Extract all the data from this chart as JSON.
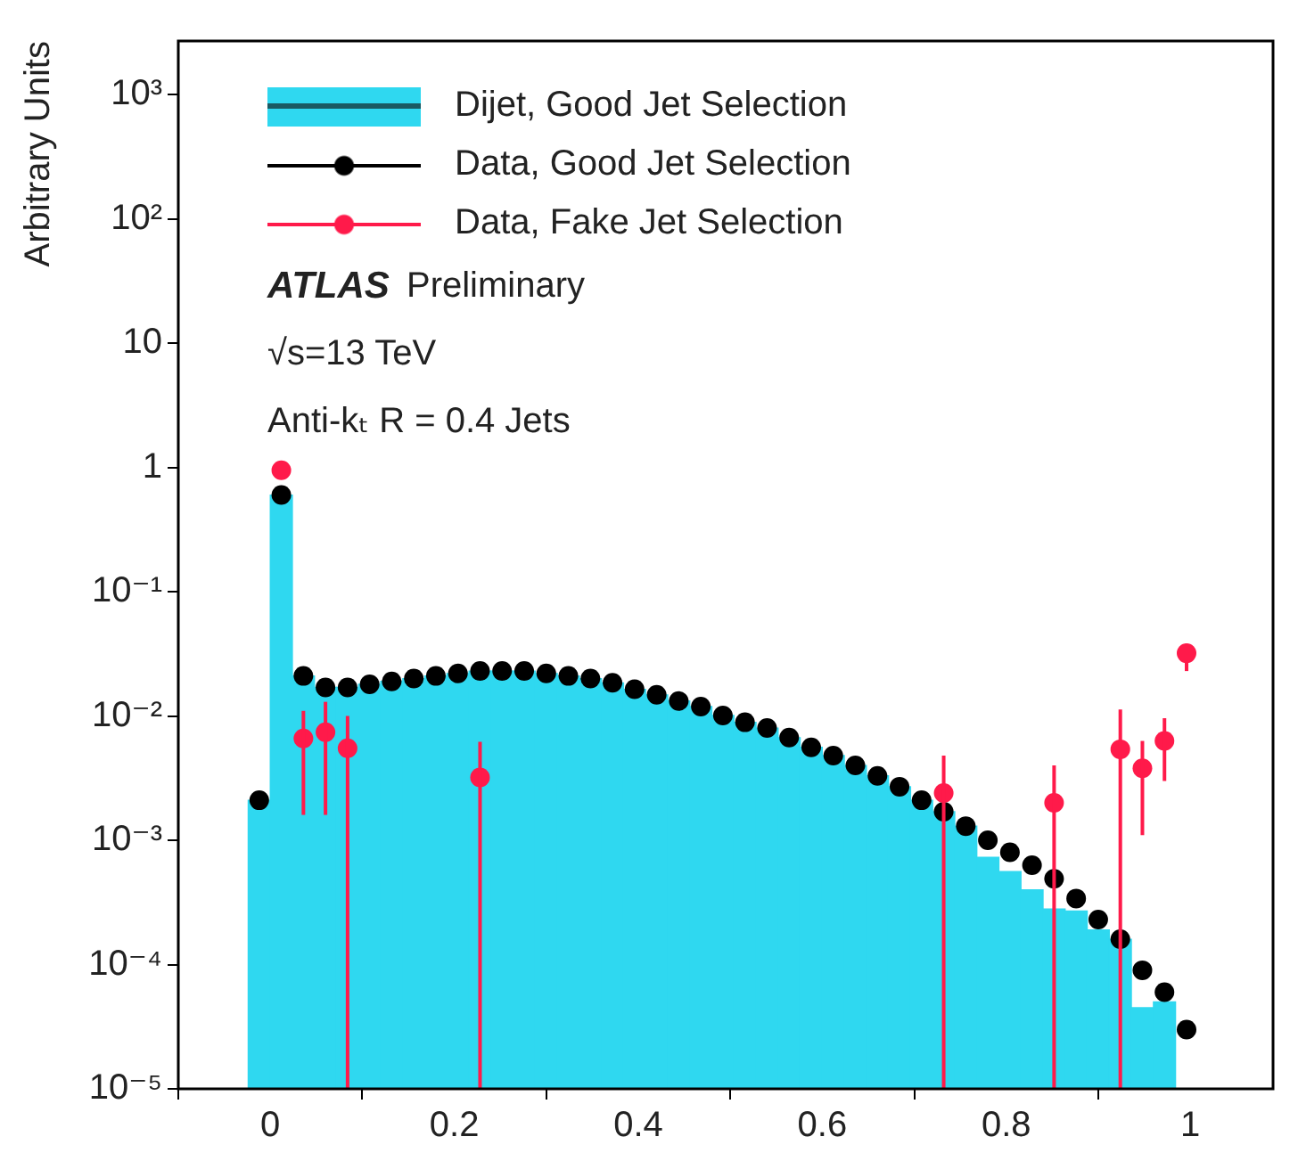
{
  "chart_data": {
    "type": "histogram",
    "ylabel": "Arbitrary Units",
    "legend": "top left",
    "grid": false,
    "log": "y",
    "marker": "circle",
    "annotations": [
      "ATLAS Preliminary",
      "√s=13 TeV",
      "Anti-kₜ R = 0.4 Jets"
    ],
    "xlim": [
      -0.1,
      1.09
    ],
    "xticks": [
      0,
      0.2,
      0.4,
      0.6,
      0.8,
      1
    ],
    "ylim": [
      1e-05,
      2700
    ],
    "yticks": [
      {
        "value": 1e-05,
        "label": "10⁻⁵"
      },
      {
        "value": 0.0001,
        "label": "10⁻⁴"
      },
      {
        "value": 0.001,
        "label": "10⁻³"
      },
      {
        "value": 0.01,
        "label": "10⁻²"
      },
      {
        "value": 0.1,
        "label": "10⁻¹"
      },
      1,
      10,
      {
        "value": 100,
        "label": "10²"
      },
      {
        "value": 1000,
        "label": "10³"
      }
    ],
    "bins": [
      -0.024,
      0,
      0.024,
      0.048,
      0.072,
      0.096,
      0.12,
      0.144,
      0.168,
      0.192,
      0.216,
      0.24,
      0.264,
      0.288,
      0.312,
      0.336,
      0.36,
      0.384,
      0.408,
      0.432,
      0.456,
      0.48,
      0.504,
      0.528,
      0.552,
      0.576,
      0.6,
      0.624,
      0.648,
      0.672,
      0.696,
      0.72,
      0.744,
      0.768,
      0.792,
      0.816,
      0.84,
      0.864,
      0.888,
      0.912,
      0.936,
      0.96,
      0.984
    ],
    "series": [
      {
        "name": "Dijet, Good Jet Selection",
        "color": "#2fd8f0",
        "values": [
          0.0021,
          0.6,
          0.021,
          0.017,
          0.017,
          0.018,
          0.019,
          0.02,
          0.021,
          0.022,
          0.023,
          0.023,
          0.023,
          0.022,
          0.021,
          0.02,
          0.0185,
          0.0164,
          0.0148,
          0.0132,
          0.0119,
          0.0101,
          0.0089,
          0.008,
          0.0067,
          0.0056,
          0.0048,
          0.004,
          0.0033,
          0.0027,
          0.0021,
          0.0017,
          0.0013,
          0.00073,
          0.00056,
          0.0004,
          0.00028,
          0.00027,
          0.00019,
          0.00016,
          4.5e-05,
          5e-05
        ]
      },
      {
        "name": "Data, Good Jet Selection",
        "type": "scatter",
        "color": "#000000",
        "x": [
          -0.012,
          0.012,
          0.036,
          0.06,
          0.084,
          0.108,
          0.132,
          0.156,
          0.18,
          0.204,
          0.228,
          0.252,
          0.276,
          0.3,
          0.324,
          0.348,
          0.372,
          0.396,
          0.42,
          0.444,
          0.468,
          0.492,
          0.516,
          0.54,
          0.564,
          0.588,
          0.612,
          0.636,
          0.66,
          0.684,
          0.708,
          0.732,
          0.756,
          0.78,
          0.804,
          0.828,
          0.852,
          0.876,
          0.9,
          0.924,
          0.948,
          0.972,
          0.996
        ],
        "values": [
          0.0021,
          0.6,
          0.021,
          0.017,
          0.017,
          0.018,
          0.019,
          0.02,
          0.021,
          0.022,
          0.023,
          0.023,
          0.023,
          0.022,
          0.021,
          0.02,
          0.0185,
          0.0164,
          0.0148,
          0.0132,
          0.0119,
          0.0101,
          0.0089,
          0.008,
          0.0067,
          0.0056,
          0.0048,
          0.004,
          0.0033,
          0.0027,
          0.0021,
          0.0017,
          0.0013,
          0.001,
          0.0008,
          0.00063,
          0.00049,
          0.00034,
          0.00023,
          0.00016,
          9e-05,
          6e-05,
          3e-05
        ]
      },
      {
        "name": "Data, Fake Jet Selection",
        "type": "scatter",
        "color": "#ff1a4a",
        "x": [
          0.012,
          0.036,
          0.06,
          0.084,
          0.228,
          0.732,
          0.852,
          0.924,
          0.948,
          0.972,
          0.996
        ],
        "values": [
          0.95,
          0.0066,
          0.0074,
          0.0055,
          0.0032,
          0.0024,
          0.002,
          0.0054,
          0.0038,
          0.0063,
          0.032
        ],
        "errors": [
          null,
          [
            0.0016,
            0.011
          ],
          [
            0.0016,
            0.013
          ],
          [
            1e-05,
            0.01
          ],
          [
            1e-05,
            0.0062
          ],
          [
            1e-05,
            0.0048
          ],
          [
            1e-05,
            0.004
          ],
          [
            1e-05,
            0.0113
          ],
          [
            0.0011,
            0.0063
          ],
          [
            0.003,
            0.0096
          ],
          [
            0.023,
            0.038
          ]
        ]
      }
    ]
  }
}
